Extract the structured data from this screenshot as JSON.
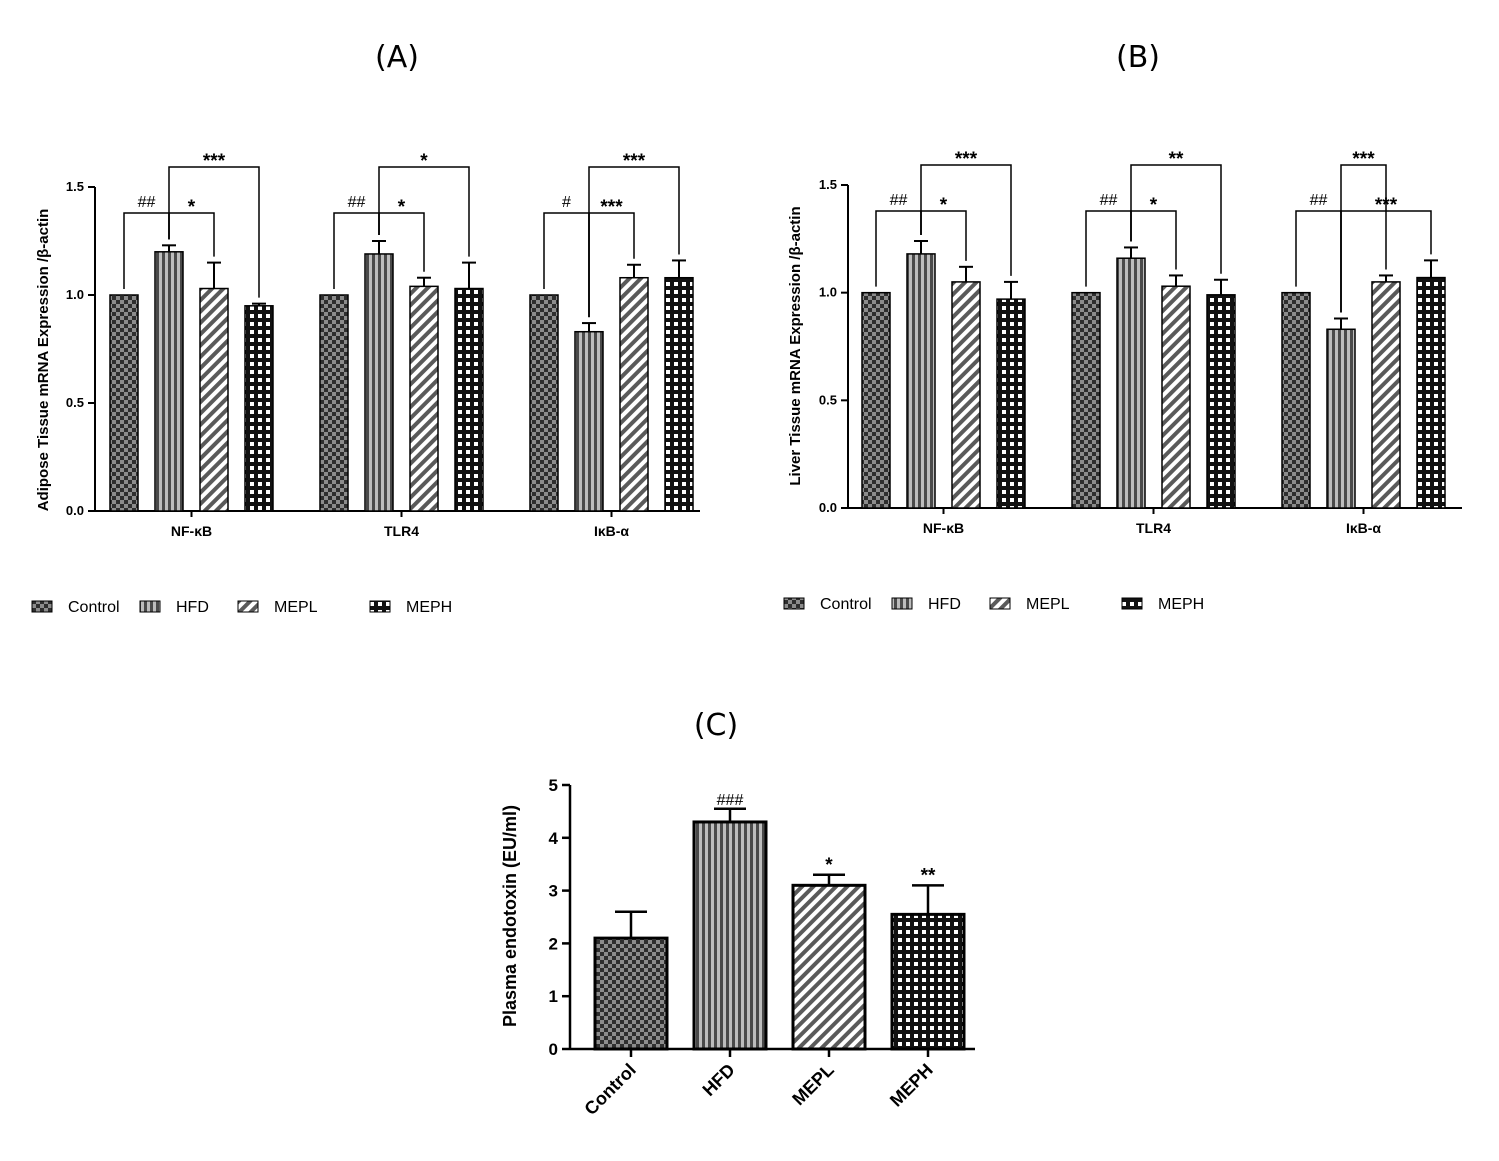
{
  "colors": {
    "ink": "#000000",
    "dark": "#3a3a3a",
    "mid": "#6b6b6b",
    "light": "#9a9a9a"
  },
  "legend": [
    "Control",
    "HFD",
    "MEPL",
    "MEPH"
  ],
  "chart_data": [
    {
      "panel": "(A)",
      "type": "bar",
      "ylabel": "Adipose Tissue mRNA Expression /β-actin",
      "ylim": [
        0,
        1.5
      ],
      "yticks": [
        "0.0",
        "0.5",
        "1.0",
        "1.5"
      ],
      "categories": [
        "NF-κB",
        "TLR4",
        "IκB-α"
      ],
      "series": [
        {
          "name": "Control",
          "pattern": "checker",
          "values": [
            1.0,
            1.0,
            1.0
          ],
          "errors": [
            0,
            0,
            0
          ]
        },
        {
          "name": "HFD",
          "pattern": "vstripe",
          "values": [
            1.2,
            1.19,
            0.83
          ],
          "errors": [
            0.03,
            0.06,
            0.04
          ]
        },
        {
          "name": "MEPL",
          "pattern": "diag",
          "values": [
            1.03,
            1.04,
            1.08
          ],
          "errors": [
            0.12,
            0.04,
            0.06
          ]
        },
        {
          "name": "MEPH",
          "pattern": "grid",
          "values": [
            0.95,
            1.03,
            1.08
          ],
          "errors": [
            0.01,
            0.12,
            0.08
          ]
        }
      ],
      "brackets": [
        {
          "group": 0,
          "from": 0,
          "to": 1,
          "label": "##",
          "level": 0
        },
        {
          "group": 0,
          "from": 1,
          "to": 2,
          "label": "*",
          "level": 0
        },
        {
          "group": 0,
          "from": 1,
          "to": 3,
          "label": "***",
          "level": 1
        },
        {
          "group": 1,
          "from": 0,
          "to": 1,
          "label": "##",
          "level": 0
        },
        {
          "group": 1,
          "from": 1,
          "to": 2,
          "label": "*",
          "level": 0
        },
        {
          "group": 1,
          "from": 1,
          "to": 3,
          "label": "*",
          "level": 1
        },
        {
          "group": 2,
          "from": 0,
          "to": 1,
          "label": "#",
          "level": 0
        },
        {
          "group": 2,
          "from": 1,
          "to": 2,
          "label": "***",
          "level": 0
        },
        {
          "group": 2,
          "from": 1,
          "to": 3,
          "label": "***",
          "level": 1
        }
      ]
    },
    {
      "panel": "(B)",
      "type": "bar",
      "ylabel": "Liver Tissue mRNA Expression /β-actin",
      "ylim": [
        0,
        1.5
      ],
      "yticks": [
        "0.0",
        "0.5",
        "1.0",
        "1.5"
      ],
      "categories": [
        "NF-κB",
        "TLR4",
        "IκB-α"
      ],
      "series": [
        {
          "name": "Control",
          "pattern": "checker",
          "values": [
            1.0,
            1.0,
            1.0
          ],
          "errors": [
            0,
            0,
            0
          ]
        },
        {
          "name": "HFD",
          "pattern": "vstripe",
          "values": [
            1.18,
            1.16,
            0.83
          ],
          "errors": [
            0.06,
            0.05,
            0.05
          ]
        },
        {
          "name": "MEPL",
          "pattern": "diag",
          "values": [
            1.05,
            1.03,
            1.05
          ],
          "errors": [
            0.07,
            0.05,
            0.03
          ]
        },
        {
          "name": "MEPH",
          "pattern": "grid",
          "values": [
            0.97,
            0.99,
            1.07
          ],
          "errors": [
            0.08,
            0.07,
            0.08
          ]
        }
      ],
      "brackets": [
        {
          "group": 0,
          "from": 0,
          "to": 1,
          "label": "##",
          "level": 0
        },
        {
          "group": 0,
          "from": 1,
          "to": 2,
          "label": "*",
          "level": 0
        },
        {
          "group": 0,
          "from": 1,
          "to": 3,
          "label": "***",
          "level": 1
        },
        {
          "group": 1,
          "from": 0,
          "to": 1,
          "label": "##",
          "level": 0
        },
        {
          "group": 1,
          "from": 1,
          "to": 2,
          "label": "*",
          "level": 0
        },
        {
          "group": 1,
          "from": 1,
          "to": 3,
          "label": "**",
          "level": 1
        },
        {
          "group": 2,
          "from": 0,
          "to": 1,
          "label": "##",
          "level": 0
        },
        {
          "group": 2,
          "from": 1,
          "to": 2,
          "label": "***",
          "level": 1
        },
        {
          "group": 2,
          "from": 1,
          "to": 3,
          "label": "***",
          "level": 0
        }
      ]
    },
    {
      "panel": "(C)",
      "type": "bar",
      "ylabel": "Plasma endotoxin (EU/ml)",
      "ylim": [
        0,
        5
      ],
      "yticks": [
        "0",
        "1",
        "2",
        "3",
        "4",
        "5"
      ],
      "categories": [
        "Control",
        "HFD",
        "MEPL",
        "MEPH"
      ],
      "patterns": [
        "checker",
        "vstripe",
        "diag",
        "grid"
      ],
      "values": [
        2.1,
        4.3,
        3.1,
        2.55
      ],
      "errors": [
        0.5,
        0.25,
        0.2,
        0.55
      ],
      "marks": [
        "",
        "###",
        "*",
        "**"
      ]
    }
  ]
}
